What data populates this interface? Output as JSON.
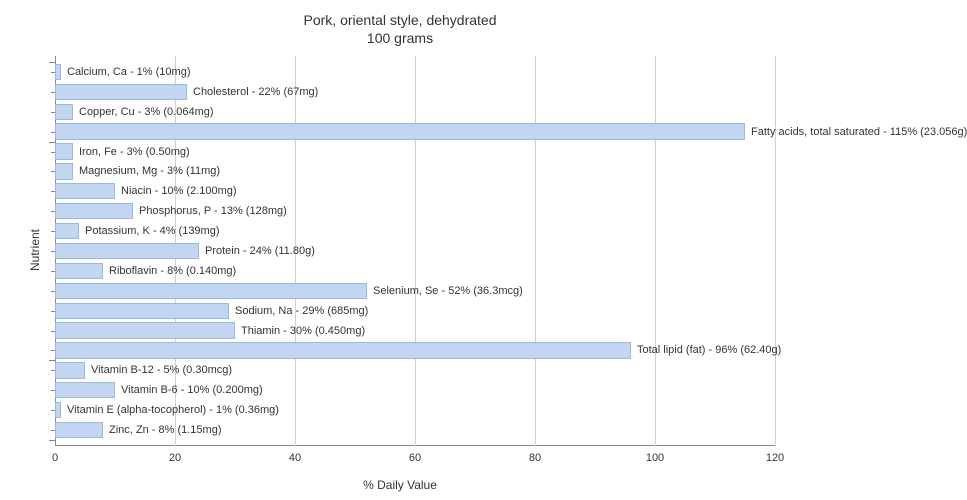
{
  "chart": {
    "type": "bar-horizontal",
    "title": "Pork, oriental style, dehydrated",
    "subtitle": "100 grams",
    "title_fontsize": 14,
    "xlabel": "% Daily Value",
    "ylabel": "Nutrient",
    "label_fontsize": 12,
    "xlim": [
      0,
      120
    ],
    "xtick_step": 20,
    "xticks": [
      0,
      20,
      40,
      60,
      80,
      100,
      120
    ],
    "background_color": "#ffffff",
    "grid_color": "#d0d0d0",
    "bar_fill": "#c2d6f2",
    "bar_border": "#9ab8e6",
    "tick_color": "#888888",
    "text_color": "#333333",
    "value_label_fontsize": 11,
    "groups": [
      {
        "start": 0,
        "end": 3
      },
      {
        "start": 4,
        "end": 14
      },
      {
        "start": 15,
        "end": 18
      }
    ],
    "items": [
      {
        "label": "Calcium, Ca - 1% (10mg)",
        "value": 1
      },
      {
        "label": "Cholesterol - 22% (67mg)",
        "value": 22
      },
      {
        "label": "Copper, Cu - 3% (0.064mg)",
        "value": 3
      },
      {
        "label": "Fatty acids, total saturated - 115% (23.056g)",
        "value": 115
      },
      {
        "label": "Iron, Fe - 3% (0.50mg)",
        "value": 3
      },
      {
        "label": "Magnesium, Mg - 3% (11mg)",
        "value": 3
      },
      {
        "label": "Niacin - 10% (2.100mg)",
        "value": 10
      },
      {
        "label": "Phosphorus, P - 13% (128mg)",
        "value": 13
      },
      {
        "label": "Potassium, K - 4% (139mg)",
        "value": 4
      },
      {
        "label": "Protein - 24% (11.80g)",
        "value": 24
      },
      {
        "label": "Riboflavin - 8% (0.140mg)",
        "value": 8
      },
      {
        "label": "Selenium, Se - 52% (36.3mcg)",
        "value": 52
      },
      {
        "label": "Sodium, Na - 29% (685mg)",
        "value": 29
      },
      {
        "label": "Thiamin - 30% (0.450mg)",
        "value": 30
      },
      {
        "label": "Total lipid (fat) - 96% (62.40g)",
        "value": 96
      },
      {
        "label": "Vitamin B-12 - 5% (0.30mcg)",
        "value": 5
      },
      {
        "label": "Vitamin B-6 - 10% (0.200mg)",
        "value": 10
      },
      {
        "label": "Vitamin E (alpha-tocopherol) - 1% (0.36mg)",
        "value": 1
      },
      {
        "label": "Zinc, Zn - 8% (1.15mg)",
        "value": 8
      }
    ]
  }
}
